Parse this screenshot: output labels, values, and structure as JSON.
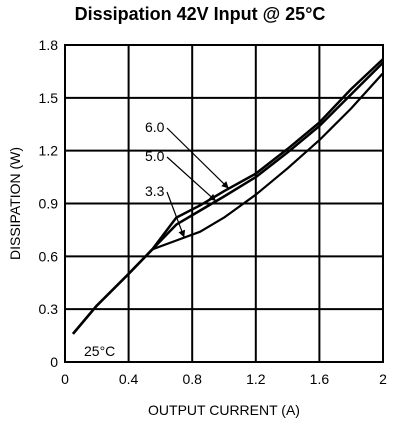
{
  "chart_data": {
    "type": "line",
    "title": "Dissipation 42V Input @ 25°C",
    "xlabel": "OUTPUT CURRENT (A)",
    "ylabel": "DISSIPATION (W)",
    "xlim": [
      0,
      2
    ],
    "ylim": [
      0,
      1.8
    ],
    "xticks": [
      0,
      0.4,
      0.8,
      1.2,
      1.6,
      2
    ],
    "xtick_labels": [
      "0",
      "0.4",
      "0.8",
      "1.2",
      "1.6",
      "2"
    ],
    "yticks": [
      0,
      0.3,
      0.6,
      0.9,
      1.2,
      1.5,
      1.8
    ],
    "ytick_labels": [
      "0",
      "0.3",
      "0.6",
      "0.9",
      "1.2",
      "1.5",
      "1.8"
    ],
    "grid": true,
    "annotation": "25°C",
    "series": [
      {
        "name": "6.0",
        "color": "#000000",
        "x": [
          0.05,
          0.2,
          0.4,
          0.55,
          0.7,
          0.85,
          1.0,
          1.2,
          1.4,
          1.6,
          1.8,
          2.0
        ],
        "y": [
          0.16,
          0.32,
          0.5,
          0.64,
          0.82,
          0.89,
          0.97,
          1.07,
          1.21,
          1.36,
          1.55,
          1.72
        ]
      },
      {
        "name": "5.0",
        "color": "#000000",
        "x": [
          0.05,
          0.2,
          0.4,
          0.55,
          0.7,
          0.85,
          1.0,
          1.2,
          1.4,
          1.6,
          1.8,
          2.0
        ],
        "y": [
          0.16,
          0.32,
          0.5,
          0.64,
          0.78,
          0.86,
          0.94,
          1.05,
          1.19,
          1.34,
          1.52,
          1.7
        ]
      },
      {
        "name": "3.3",
        "color": "#000000",
        "x": [
          0.05,
          0.2,
          0.4,
          0.55,
          0.7,
          0.85,
          1.0,
          1.2,
          1.4,
          1.6,
          1.8,
          2.0
        ],
        "y": [
          0.16,
          0.32,
          0.5,
          0.64,
          0.69,
          0.74,
          0.82,
          0.95,
          1.1,
          1.26,
          1.44,
          1.64
        ]
      }
    ],
    "label_targets": [
      {
        "series": "6.0",
        "x": 1.03
      },
      {
        "series": "5.0",
        "x": 0.95
      },
      {
        "series": "3.3",
        "x": 0.75
      }
    ]
  }
}
